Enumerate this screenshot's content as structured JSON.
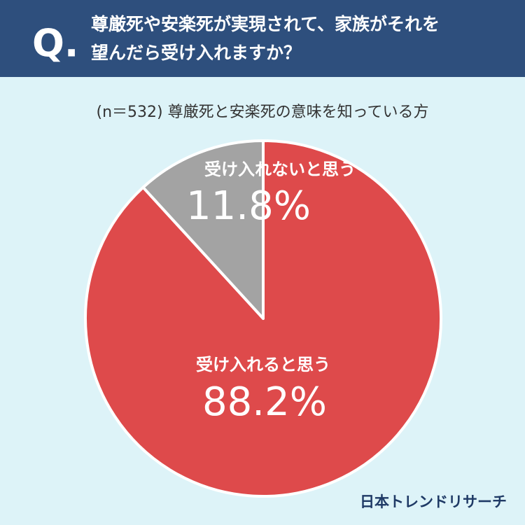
{
  "chart_data": {
    "type": "pie",
    "question_marker": "Q.",
    "title": [
      "尊厳死や安楽死が実現されて、家族がそれを",
      "望んだら受け入れますか？"
    ],
    "subtitle": "(n＝532) 尊厳死と安楽死の意味を知っている方",
    "categories": [
      "受け入れると思う",
      "受け入れないと思う"
    ],
    "values": [
      88.2,
      11.8
    ],
    "value_labels": [
      "88.2%",
      "11.8%"
    ],
    "colors": [
      "#de4a4b",
      "#a3a3a3"
    ],
    "source": "日本トレンドリサーチ"
  }
}
